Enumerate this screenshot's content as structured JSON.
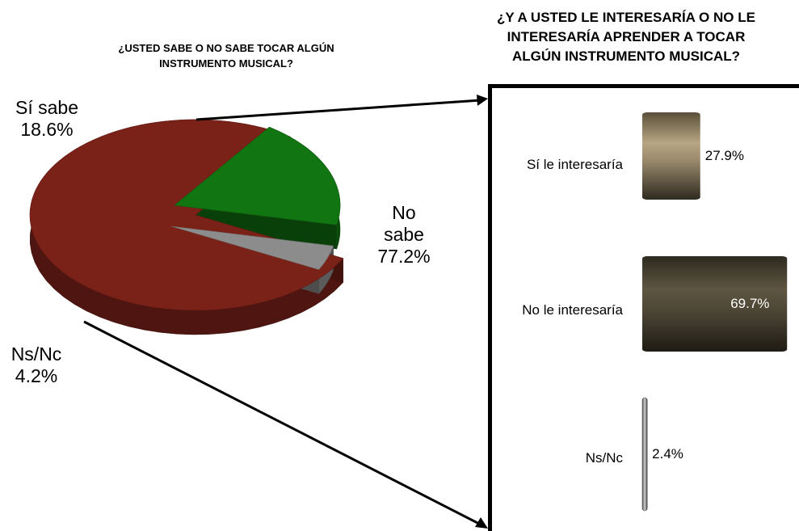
{
  "pie_chart": {
    "title_line1": "¿USTED SABE O NO SABE TOCAR ALGÚN",
    "title_line2": "INSTRUMENTO MUSICAL?",
    "slices": [
      {
        "label_line1": "No",
        "label_line2": "sabe",
        "value_text": "77.2%",
        "value": 77.2,
        "color": "#7a2118"
      },
      {
        "label_line1": "Sí sabe",
        "label_line2": "",
        "value_text": "18.6%",
        "value": 18.6,
        "color": "#117511"
      },
      {
        "label_line1": "Ns/Nc",
        "label_line2": "",
        "value_text": "4.2%",
        "value": 4.2,
        "color": "#8c8c8c"
      }
    ]
  },
  "bar_chart": {
    "title_line1": "¿Y A USTED LE INTERESARÍA O NO LE",
    "title_line2": "INTERESARÍA APRENDER A TOCAR",
    "title_line3": "ALGÚN INSTRUMENTO MUSICAL?",
    "categories": [
      "Sí le interesaría",
      "No le interesaría",
      "Ns/Nc"
    ],
    "values": [
      27.9,
      69.7,
      2.4
    ],
    "value_labels": [
      "27.9%",
      "69.7%",
      "2.4%"
    ],
    "colors": [
      "#9a8a6c",
      "#4a4434",
      "#9a9a9a"
    ]
  },
  "chart_data": [
    {
      "type": "pie",
      "title": "¿USTED SABE O NO SABE TOCAR ALGÚN INSTRUMENTO MUSICAL?",
      "categories": [
        "No sabe",
        "Sí sabe",
        "Ns/Nc"
      ],
      "values": [
        77.2,
        18.6,
        4.2
      ],
      "exploded": [
        "Sí sabe",
        "Ns/Nc"
      ],
      "three_d": true
    },
    {
      "type": "bar",
      "orientation": "horizontal",
      "title": "¿Y A USTED LE INTERESARÍA O NO LE INTERESARÍA APRENDER A TOCAR ALGÚN INSTRUMENTO MUSICAL?",
      "categories": [
        "Sí le interesaría",
        "No le interesaría",
        "Ns/Nc"
      ],
      "values": [
        27.9,
        69.7,
        2.4
      ],
      "xlim": [
        0,
        70
      ],
      "grid": false,
      "legend": "none"
    }
  ]
}
